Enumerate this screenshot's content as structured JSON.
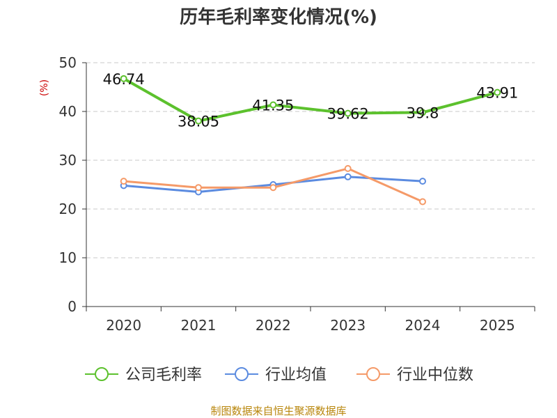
{
  "chart_data": {
    "type": "line",
    "title": "历年毛利率变化情况(%)",
    "ylabel": "(%)",
    "xlabel": "",
    "ylim": [
      0,
      50
    ],
    "yticks": [
      0,
      10,
      20,
      30,
      40,
      50
    ],
    "categories": [
      "2020",
      "2021",
      "2022",
      "2023",
      "2024",
      "2025"
    ],
    "series": [
      {
        "name": "公司毛利率",
        "color": "#5cc12d",
        "values": [
          46.74,
          38.05,
          41.35,
          39.62,
          39.8,
          43.91
        ],
        "labels": [
          "46.74",
          "38.05",
          "41.35",
          "39.62",
          "39.8",
          "43.91"
        ]
      },
      {
        "name": "行业均值",
        "color": "#5b8be0",
        "values": [
          24.8,
          23.5,
          25.0,
          26.6,
          25.7,
          null
        ]
      },
      {
        "name": "行业中位数",
        "color": "#f59a68",
        "values": [
          25.7,
          24.4,
          24.4,
          28.3,
          21.5,
          null
        ]
      }
    ],
    "grid": true,
    "legend_position": "bottom",
    "source": "制图数据来自恒生聚源数据库"
  }
}
